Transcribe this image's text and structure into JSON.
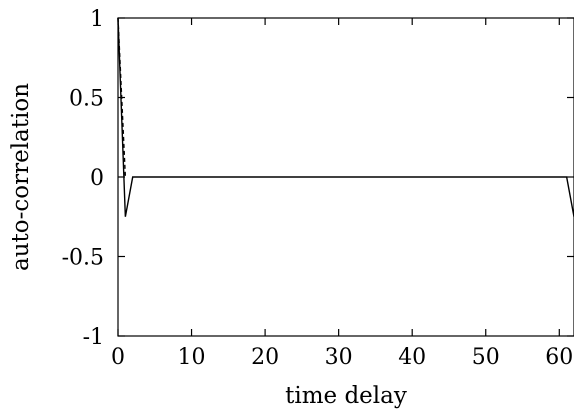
{
  "chart_data": {
    "type": "line",
    "xlabel": "time delay",
    "ylabel": "auto-correlation",
    "xlim": [
      0,
      62
    ],
    "ylim": [
      -1,
      1
    ],
    "xticks": [
      0,
      10,
      20,
      30,
      40,
      50,
      60
    ],
    "yticks": [
      1,
      0.5,
      0,
      -0.5,
      -1
    ],
    "xtick_labels": [
      "0",
      "10",
      "20",
      "30",
      "40",
      "50",
      "60"
    ],
    "ytick_labels": [
      "1",
      "0.5",
      "0",
      "-0.5",
      "-1"
    ],
    "grid": false,
    "series": [
      {
        "style": "solid",
        "x": [
          0,
          1,
          2,
          61,
          62
        ],
        "y": [
          1,
          -0.25,
          0,
          0,
          -0.25
        ]
      },
      {
        "style": "dashed",
        "x": [
          0,
          1
        ],
        "y": [
          1,
          0
        ]
      }
    ]
  }
}
